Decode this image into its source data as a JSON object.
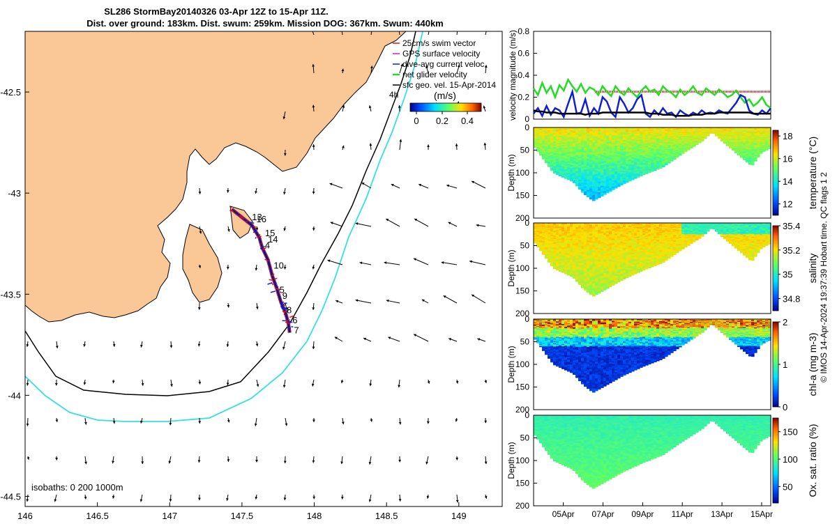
{
  "title_line1": "SL286 StormBay20140326 03-Apr 12Z to 15-Apr 11Z.",
  "title_line2": "Dist. over ground: 183km. Dist. swum: 259km. Mission DOG: 367km. Swum: 440km",
  "footer_note": "© IMOS 14-Apr-2024 19:37:39 Hobart time. QC flags 1  2",
  "colors": {
    "land": "#f9c896",
    "cyan_isobath": "#35e0e0",
    "swim_vector": "#e01010",
    "gps_velocity": "#cc22cc",
    "current_velocity": "#1020d0",
    "net_velocity": "#22dd22"
  },
  "chart_data": [
    {
      "type": "map",
      "name": "glider-track-map",
      "xticks": [
        "146",
        "146.5",
        "147",
        "147.5",
        "148",
        "148.5",
        "149"
      ],
      "yticks": [
        "-42.5",
        "-43",
        "-43.5",
        "-44",
        "-44.5"
      ],
      "xlim": [
        146,
        149.3
      ],
      "ylim": [
        -44.55,
        -42.2
      ],
      "legend": [
        {
          "label": "25cm/s swim vector",
          "color": "#e01010"
        },
        {
          "label": "GPS surface velocity",
          "color": "#cc22cc"
        },
        {
          "label": "dive-avg current veloc.",
          "color": "#1020d0"
        },
        {
          "label": "net glider velocity",
          "color": "#22dd22"
        },
        {
          "label": "sfc geo. vel. 15-Apr-2014",
          "color": "#000000"
        }
      ],
      "colorbar": {
        "label": "(m/s)",
        "ticks": [
          "0",
          "0.2",
          "0.4"
        ],
        "range": [
          0,
          0.5
        ]
      },
      "colorbar_corner_label": "4h",
      "isobath_label": "isobaths: 0   200  1000m",
      "day_labels": [
        {
          "label": "13",
          "lon": 147.55,
          "lat": -43.12
        },
        {
          "label": "16",
          "lon": 147.58,
          "lat": -43.13
        },
        {
          "label": "15",
          "lon": 147.64,
          "lat": -43.2
        },
        {
          "label": "14",
          "lon": 147.66,
          "lat": -43.23
        },
        {
          "label": "4",
          "lon": 147.64,
          "lat": -43.26
        },
        {
          "label": "10",
          "lon": 147.7,
          "lat": -43.36
        },
        {
          "label": "5",
          "lon": 147.74,
          "lat": -43.48
        },
        {
          "label": "9",
          "lon": 147.76,
          "lat": -43.51
        },
        {
          "label": "8",
          "lon": 147.79,
          "lat": -43.58
        },
        {
          "label": "6",
          "lon": 147.83,
          "lat": -43.63
        },
        {
          "label": "7",
          "lon": 147.84,
          "lat": -43.68
        }
      ]
    },
    {
      "type": "line",
      "name": "velocity-magnitude",
      "ylabel": "velocity magnitude (m/s)",
      "yticks": [
        "0",
        "0.2",
        "0.4",
        "0.6",
        "0.8"
      ],
      "ylim": [
        0,
        0.8
      ],
      "swim_reference": 0.25,
      "series": [
        {
          "color": "#22dd22",
          "values": [
            0.28,
            0.22,
            0.33,
            0.24,
            0.3,
            0.2,
            0.31,
            0.26,
            0.36,
            0.3,
            0.25,
            0.32,
            0.24,
            0.29,
            0.27,
            0.22,
            0.3,
            0.25,
            0.21,
            0.3,
            0.25,
            0.22,
            0.28,
            0.24,
            0.2,
            0.26,
            0.3,
            0.25,
            0.27,
            0.22,
            0.3,
            0.26,
            0.24,
            0.2,
            0.27,
            0.22,
            0.25,
            0.3,
            0.24,
            0.22,
            0.28,
            0.25,
            0.22,
            0.27,
            0.24,
            0.2,
            0.22,
            0.26,
            0.2,
            0.15,
            0.18,
            0.12,
            0.15,
            0.2,
            0.13,
            0.1
          ]
        },
        {
          "color": "#1020d0",
          "values": [
            0.05,
            0.1,
            0.03,
            0.12,
            0.04,
            0.1,
            0.08,
            0.02,
            0.14,
            0.25,
            0.05,
            0.06,
            0.18,
            0.03,
            0.1,
            0.05,
            0.2,
            0.16,
            0.06,
            0.02,
            0.2,
            0.14,
            0.06,
            0.1,
            0.18,
            0.22,
            0.05,
            0.02,
            0.08,
            0.04,
            0.1,
            0.05,
            0.06,
            0.02,
            0.08,
            0.05,
            0.03,
            0.06,
            0.04,
            0.08,
            0.05,
            0.06,
            0.05,
            0.08,
            0.06,
            0.05,
            0.1,
            0.15,
            0.22,
            0.2,
            0.08,
            0.05,
            0.04,
            0.08,
            0.05,
            0.1
          ]
        },
        {
          "color": "#000000",
          "values": [
            0.08,
            0.07,
            0.07,
            0.06,
            0.06,
            0.06,
            0.05,
            0.05,
            0.05,
            0.05,
            0.05,
            0.05,
            0.04,
            0.05,
            0.05,
            0.05,
            0.06,
            0.06,
            0.06,
            0.06,
            0.06,
            0.06,
            0.06,
            0.06,
            0.06,
            0.06,
            0.06,
            0.05,
            0.05,
            0.05,
            0.04,
            0.04,
            0.04,
            0.03,
            0.03,
            0.03,
            0.03,
            0.04,
            0.04,
            0.04,
            0.05,
            0.05,
            0.05,
            0.06,
            0.06,
            0.06,
            0.06,
            0.06,
            0.06,
            0.06,
            0.06,
            0.05,
            0.05,
            0.05,
            0.05,
            0.05
          ]
        }
      ]
    },
    {
      "type": "heatmap",
      "name": "temperature-section",
      "ylabel": "Depth (m)",
      "colorbar_label": "temperature (°C)",
      "yticks": [
        "0",
        "50",
        "100",
        "150",
        "200"
      ],
      "colorbar_ticks": [
        "12",
        "14",
        "16",
        "18"
      ],
      "crange": [
        11,
        18.5
      ]
    },
    {
      "type": "heatmap",
      "name": "salinity-section",
      "ylabel": "Depth (m)",
      "colorbar_label": "salinity",
      "yticks": [
        "0",
        "50",
        "100",
        "150",
        "200"
      ],
      "colorbar_ticks": [
        "34.8",
        "35",
        "35.2",
        "35.4"
      ],
      "crange": [
        34.7,
        35.4
      ]
    },
    {
      "type": "heatmap",
      "name": "chla-section",
      "ylabel": "Depth (m)",
      "colorbar_label": "chl-a (mg m-3)",
      "yticks": [
        "0",
        "50",
        "100",
        "150",
        "200"
      ],
      "colorbar_ticks": [
        "0",
        "1",
        "2"
      ],
      "crange": [
        0,
        2
      ]
    },
    {
      "type": "heatmap",
      "name": "oxygen-section",
      "ylabel": "Depth (m)",
      "colorbar_label": "Ox. sat. ratio (%)",
      "yticks": [
        "0",
        "50",
        "100",
        "150",
        "200"
      ],
      "colorbar_ticks": [
        "50",
        "100",
        "150"
      ],
      "crange": [
        20,
        175
      ],
      "xticks": [
        "05Apr",
        "07Apr",
        "09Apr",
        "11Apr",
        "13Apr",
        "15Apr"
      ],
      "xlim": [
        "03-Apr-2014 12:00",
        "15-Apr-2014 11:00"
      ],
      "bottom_depth": [
        [
          "03-Apr-2014 12:00",
          40
        ],
        [
          "04-Apr-2014 12:00",
          100
        ],
        [
          "05-Apr-2014 12:00",
          120
        ],
        [
          "06-Apr-2014 00:00",
          145
        ],
        [
          "06-Apr-2014 12:00",
          162
        ],
        [
          "07-Apr-2014 00:00",
          150
        ],
        [
          "08-Apr-2014 00:00",
          125
        ],
        [
          "09-Apr-2014 00:00",
          105
        ],
        [
          "10-Apr-2014 00:00",
          88
        ],
        [
          "11-Apr-2014 00:00",
          58
        ],
        [
          "12-Apr-2014 00:00",
          30
        ],
        [
          "12-Apr-2014 12:00",
          10
        ],
        [
          "13-Apr-2014 00:00",
          30
        ],
        [
          "14-Apr-2014 12:00",
          85
        ],
        [
          "15-Apr-2014 00:00",
          55
        ],
        [
          "15-Apr-2014 11:00",
          45
        ]
      ]
    }
  ]
}
